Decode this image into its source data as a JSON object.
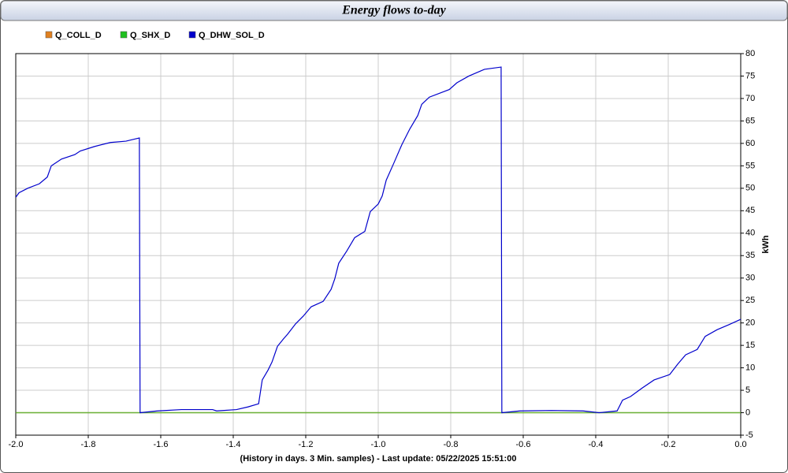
{
  "chart_data": {
    "type": "line",
    "title": "Energy flows to-day",
    "x_label": "(History in days. 3 Min. samples) - Last update: 05/22/2025 15:51:00",
    "y_label": "kWh",
    "xlim": [
      -2.0,
      0.0
    ],
    "ylim": [
      -5,
      80
    ],
    "xticks": [
      {
        "value": -2.0,
        "label": "-2.0"
      },
      -1.8,
      -1.6,
      -1.4,
      -1.2,
      {
        "value": -1.0,
        "label": "-1.0"
      },
      -0.8,
      -0.6,
      -0.4,
      -0.2,
      {
        "value": 0.0,
        "label": "0.0"
      }
    ],
    "yticks": [
      -5,
      0,
      5,
      10,
      15,
      20,
      25,
      30,
      35,
      40,
      45,
      50,
      55,
      60,
      65,
      70,
      75,
      80
    ],
    "grid": true,
    "series": [
      {
        "name": "Q_COLL_D",
        "color": "#e08020",
        "x": [
          -2.0,
          0.0
        ],
        "values": [
          0,
          0
        ]
      },
      {
        "name": "Q_SHX_D",
        "color": "#20c020",
        "x": [
          -2.0,
          0.0
        ],
        "values": [
          0,
          0
        ]
      },
      {
        "name": "Q_DHW_SOL_D",
        "color": "#0000cc",
        "x": [
          -2.0,
          -1.991,
          -1.967,
          -1.935,
          -1.913,
          -1.902,
          -1.874,
          -1.837,
          -1.822,
          -1.783,
          -1.739,
          -1.696,
          -1.67,
          -1.659,
          -1.657,
          -1.609,
          -1.543,
          -1.457,
          -1.446,
          -1.391,
          -1.359,
          -1.33,
          -1.32,
          -1.304,
          -1.293,
          -1.278,
          -1.261,
          -1.25,
          -1.228,
          -1.207,
          -1.185,
          -1.152,
          -1.13,
          -1.12,
          -1.109,
          -1.087,
          -1.065,
          -1.037,
          -1.022,
          -1.0,
          -0.989,
          -0.978,
          -0.957,
          -0.935,
          -0.913,
          -0.891,
          -0.88,
          -0.859,
          -0.804,
          -0.783,
          -0.75,
          -0.707,
          -0.661,
          -0.659,
          -0.609,
          -0.522,
          -0.435,
          -0.391,
          -0.341,
          -0.326,
          -0.304,
          -0.272,
          -0.239,
          -0.196,
          -0.174,
          -0.152,
          -0.12,
          -0.098,
          -0.065,
          -0.033,
          0.0
        ],
        "values": [
          48,
          49,
          50,
          51,
          52.5,
          55,
          56.5,
          57.5,
          58.3,
          59.3,
          60.2,
          60.5,
          61,
          61.2,
          0,
          0.4,
          0.7,
          0.7,
          0.4,
          0.7,
          1.3,
          2,
          7.3,
          9.5,
          11.3,
          14.8,
          16.5,
          17.5,
          19.8,
          21.5,
          23.6,
          24.8,
          27.5,
          29.8,
          33.3,
          36,
          39,
          40.4,
          44.8,
          46.5,
          48.3,
          51.8,
          55.6,
          59.7,
          63.2,
          66.2,
          68.7,
          70.3,
          72,
          73.5,
          75,
          76.5,
          77,
          0,
          0.4,
          0.5,
          0.4,
          0,
          0.4,
          2.8,
          3.6,
          5.5,
          7.3,
          8.5,
          10.8,
          12.9,
          14.1,
          17,
          18.5,
          19.6,
          20.8
        ]
      }
    ]
  }
}
